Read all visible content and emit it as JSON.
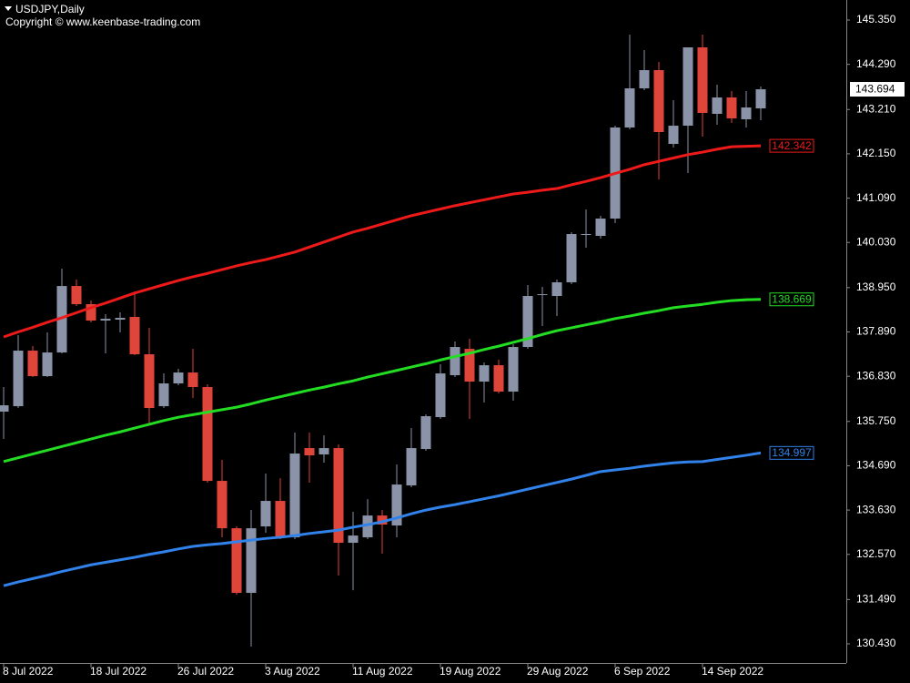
{
  "chart_data": {
    "type": "candlestick",
    "title": "USDJPY,Daily",
    "subtitle": "Copyright © www.keenbase-trading.com",
    "categories": [
      "8 Jul 2022",
      null,
      null,
      null,
      null,
      null,
      "18 Jul 2022",
      null,
      null,
      null,
      null,
      null,
      "26 Jul 2022",
      null,
      null,
      null,
      null,
      null,
      "3 Aug 2022",
      null,
      null,
      null,
      null,
      null,
      "11 Aug 2022",
      null,
      null,
      null,
      null,
      null,
      "19 Aug 2022",
      null,
      null,
      null,
      null,
      null,
      "29 Aug 2022",
      null,
      null,
      null,
      null,
      null,
      "6 Sep 2022",
      null,
      null,
      null,
      null,
      null,
      "14 Sep 2022",
      null,
      null,
      null,
      null
    ],
    "up_color": "#8a93a8",
    "down_color": "#e0453a",
    "open": [
      135.984,
      136.114,
      137.443,
      136.833,
      137.399,
      138.989,
      138.554,
      138.162,
      138.184,
      138.249,
      137.356,
      136.114,
      136.659,
      136.92,
      136.572,
      134.328,
      133.195,
      131.649,
      133.239,
      133.849,
      132.978,
      135.112,
      134.96,
      135.112,
      132.847,
      132.978,
      133.5,
      133.261,
      134.219,
      135.09,
      135.853,
      136.855,
      137.486,
      136.702,
      137.094,
      136.463,
      137.53,
      138.772,
      138.75,
      139.077,
      140.209,
      140.188,
      140.601,
      142.78,
      143.716,
      144.152,
      142.387,
      142.823,
      144.696,
      143.106,
      143.498,
      142.976,
      143.237
    ],
    "high": [
      136.572,
      137.813,
      137.552,
      137.879,
      139.403,
      139.142,
      138.641,
      138.314,
      138.358,
      138.859,
      137.987,
      136.898,
      137.007,
      137.486,
      136.637,
      134.829,
      133.239,
      133.631,
      134.502,
      134.393,
      135.483,
      135.483,
      135.417,
      135.199,
      133.588,
      133.892,
      133.631,
      134.72,
      135.591,
      135.918,
      137.116,
      137.661,
      137.726,
      137.16,
      137.225,
      137.595,
      139.011,
      138.968,
      139.142,
      140.275,
      140.819,
      140.667,
      142.823,
      145.001,
      144.631,
      144.348,
      143.433,
      144.696,
      145.001,
      143.803,
      143.651,
      143.651,
      143.76
    ],
    "low": [
      135.33,
      136.071,
      136.811,
      136.811,
      137.378,
      138.51,
      138.118,
      137.378,
      137.879,
      137.334,
      135.7,
      136.071,
      136.615,
      136.31,
      134.285,
      132.978,
      131.605,
      130.364,
      133.087,
      132.934,
      132.934,
      134.285,
      134.764,
      132.063,
      131.714,
      132.934,
      132.586,
      132.978,
      134.176,
      135.047,
      135.809,
      136.811,
      135.809,
      136.201,
      136.419,
      136.245,
      137.486,
      138.031,
      138.271,
      139.033,
      139.904,
      140.122,
      140.492,
      142.736,
      143.673,
      141.538,
      142.3,
      141.69,
      142.562,
      142.845,
      142.888,
      142.78,
      142.954
    ],
    "close": [
      136.136,
      137.443,
      136.833,
      137.399,
      138.989,
      138.554,
      138.162,
      138.205,
      138.227,
      137.356,
      136.071,
      136.659,
      136.92,
      136.572,
      134.328,
      133.195,
      131.649,
      133.195,
      133.849,
      132.978,
      134.982,
      134.938,
      135.112,
      132.847,
      133.021,
      133.5,
      133.283,
      134.241,
      135.112,
      135.875,
      136.898,
      137.53,
      136.702,
      137.094,
      136.463,
      137.53,
      138.75,
      138.793,
      139.077,
      140.231,
      140.231,
      140.601,
      142.78,
      143.716,
      144.152,
      142.671,
      142.823,
      144.696,
      143.128,
      143.498,
      142.997,
      143.259,
      143.694
    ],
    "series": [
      {
        "color": "#ee1a1a",
        "values": [
          137.77,
          137.89,
          138.0,
          138.12,
          138.23,
          138.35,
          138.47,
          138.58,
          138.7,
          138.82,
          138.92,
          139.02,
          139.12,
          139.21,
          139.29,
          139.38,
          139.47,
          139.55,
          139.62,
          139.71,
          139.8,
          139.92,
          140.04,
          140.16,
          140.28,
          140.37,
          140.47,
          140.57,
          140.67,
          140.75,
          140.83,
          140.91,
          140.98,
          141.05,
          141.12,
          141.19,
          141.23,
          141.28,
          141.32,
          141.41,
          141.49,
          141.58,
          141.68,
          141.78,
          141.89,
          141.97,
          142.05,
          142.13,
          142.19,
          142.26,
          142.32,
          142.33,
          142.342
        ]
      },
      {
        "color": "#22dd22",
        "values": [
          134.79,
          134.88,
          134.97,
          135.06,
          135.15,
          135.24,
          135.33,
          135.42,
          135.5,
          135.59,
          135.68,
          135.77,
          135.85,
          135.91,
          135.97,
          136.03,
          136.09,
          136.17,
          136.26,
          136.34,
          136.42,
          136.5,
          136.57,
          136.65,
          136.72,
          136.81,
          136.89,
          136.97,
          137.05,
          137.13,
          137.22,
          137.3,
          137.38,
          137.47,
          137.55,
          137.64,
          137.73,
          137.83,
          137.92,
          137.99,
          138.06,
          138.13,
          138.21,
          138.27,
          138.34,
          138.4,
          138.47,
          138.51,
          138.55,
          138.6,
          138.64,
          138.66,
          138.669
        ]
      },
      {
        "color": "#3182ea",
        "values": [
          131.82,
          131.91,
          131.99,
          132.07,
          132.16,
          132.24,
          132.32,
          132.38,
          132.44,
          132.5,
          132.57,
          132.63,
          132.7,
          132.76,
          132.8,
          132.83,
          132.87,
          132.91,
          132.95,
          132.98,
          133.02,
          133.07,
          133.11,
          133.15,
          133.22,
          133.28,
          133.35,
          133.44,
          133.54,
          133.63,
          133.7,
          133.76,
          133.83,
          133.9,
          133.97,
          134.05,
          134.13,
          134.21,
          134.29,
          134.37,
          134.46,
          134.55,
          134.59,
          134.63,
          134.68,
          134.72,
          134.76,
          134.78,
          134.79,
          134.84,
          134.89,
          134.94,
          134.997
        ]
      }
    ],
    "ylim": [
      129.973,
      145.829
    ],
    "yticks": [
      {
        "value": 145.35,
        "label": "145.350"
      },
      {
        "value": 144.29,
        "label": "144.290"
      },
      {
        "value": 143.21,
        "label": "143.210"
      },
      {
        "value": 142.15,
        "label": "142.150"
      },
      {
        "value": 141.09,
        "label": "141.090"
      },
      {
        "value": 140.03,
        "label": "140.030"
      },
      {
        "value": 138.95,
        "label": "138.950"
      },
      {
        "value": 137.89,
        "label": "137.890"
      },
      {
        "value": 136.83,
        "label": "136.830"
      },
      {
        "value": 135.75,
        "label": "135.750"
      },
      {
        "value": 134.69,
        "label": "134.690"
      },
      {
        "value": 133.63,
        "label": "133.630"
      },
      {
        "value": 132.57,
        "label": "132.570"
      },
      {
        "value": 131.49,
        "label": "131.490"
      },
      {
        "value": 130.43,
        "label": "130.430"
      }
    ]
  }
}
